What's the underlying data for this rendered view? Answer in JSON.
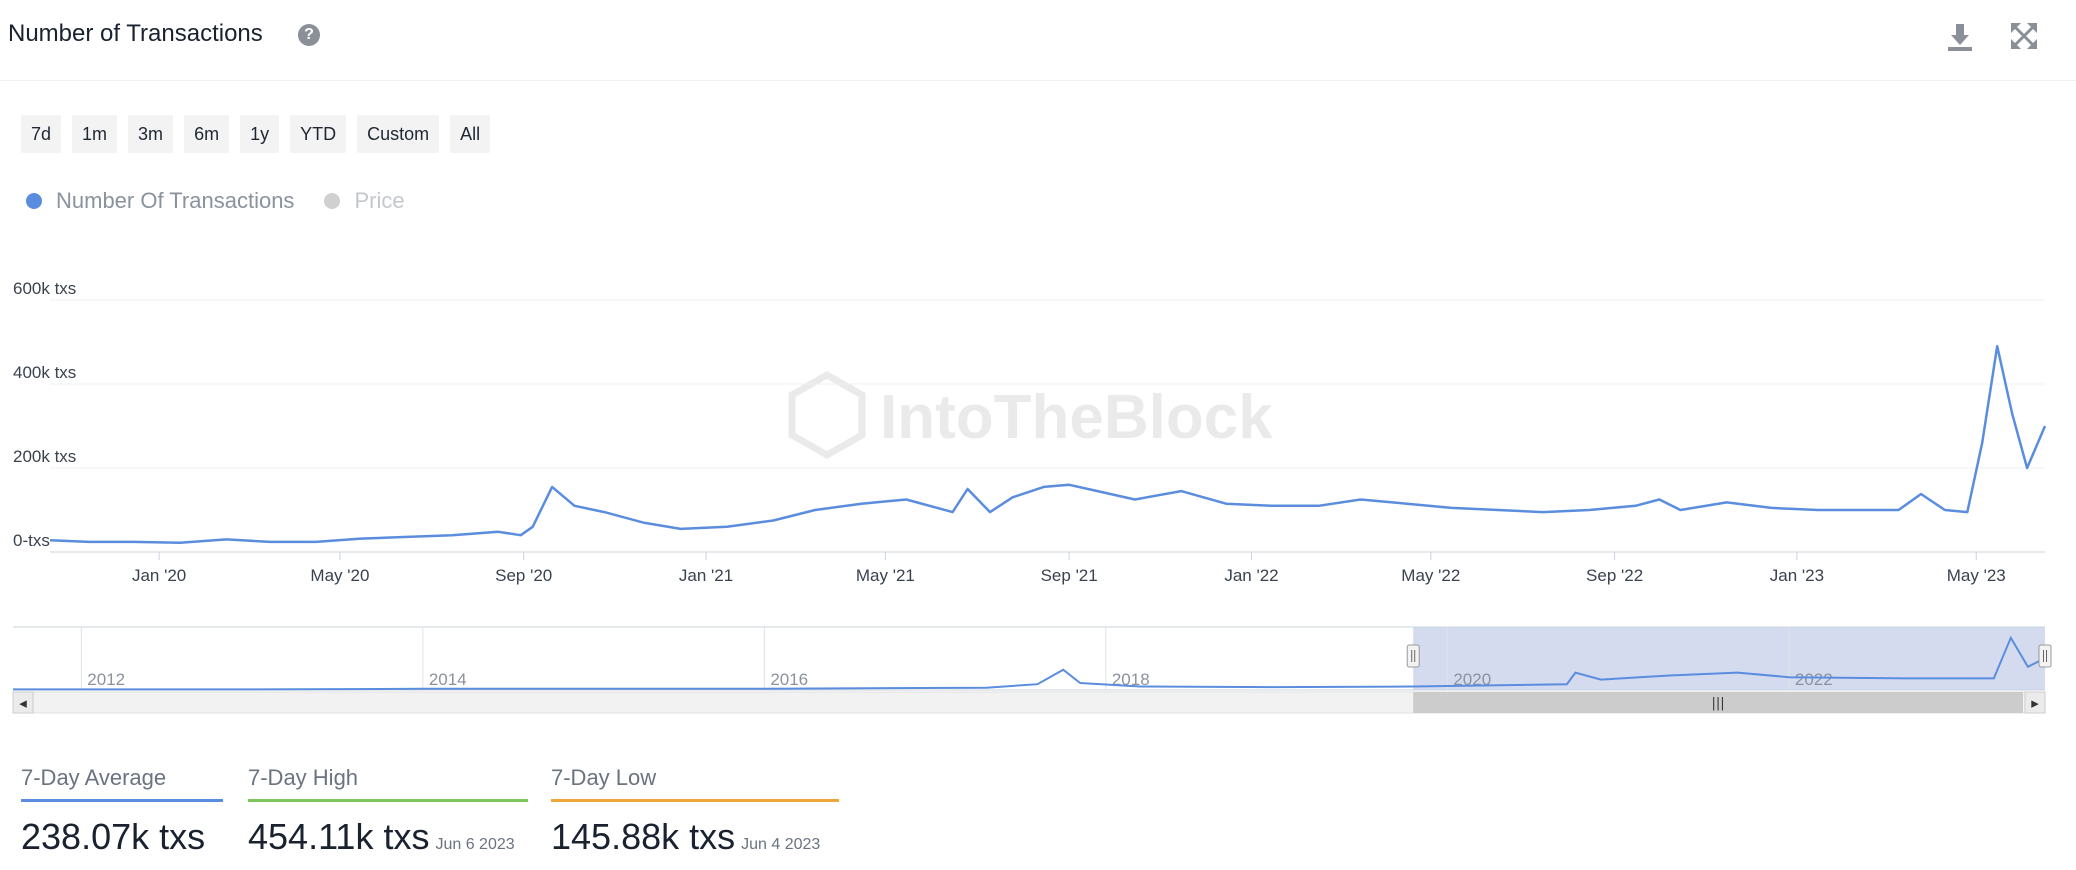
{
  "header": {
    "title": "Number of Transactions",
    "help_glyph": "?",
    "icons": [
      "help-icon",
      "download-icon",
      "expand-icon"
    ]
  },
  "range_buttons": [
    "7d",
    "1m",
    "3m",
    "6m",
    "1y",
    "YTD",
    "Custom",
    "All"
  ],
  "legend": [
    {
      "label": "Number Of Transactions",
      "color": "#5b8dde",
      "active": true
    },
    {
      "label": "Price",
      "color": "#cccccc",
      "active": false
    }
  ],
  "watermark": "IntoTheBlock",
  "chart_data": {
    "type": "line",
    "title": "Number of Transactions",
    "y_ticks": [
      "600k txs",
      "400k txs",
      "200k txs",
      "0-txs"
    ],
    "y_tick_values": [
      600,
      400,
      200,
      0
    ],
    "ylim": [
      0,
      600
    ],
    "y_unit": "k txs",
    "x_ticks": [
      "Jan '20",
      "May '20",
      "Sep '20",
      "Jan '21",
      "May '21",
      "Sep '21",
      "Jan '22",
      "May '22",
      "Sep '22",
      "Jan '23",
      "May '23"
    ],
    "x_tick_values": [
      "2020-01-01",
      "2020-05-01",
      "2020-09-01",
      "2021-01-01",
      "2021-05-01",
      "2021-09-01",
      "2022-01-01",
      "2022-05-01",
      "2022-09-01",
      "2023-01-01",
      "2023-05-01"
    ],
    "xlim": [
      "2019-10-20",
      "2023-06-16"
    ],
    "grid": true,
    "series": [
      {
        "name": "Number Of Transactions",
        "color": "#5b8dde",
        "points": [
          [
            "2019-10-20",
            28
          ],
          [
            "2019-11-15",
            24
          ],
          [
            "2019-12-15",
            24
          ],
          [
            "2020-01-15",
            22
          ],
          [
            "2020-02-15",
            30
          ],
          [
            "2020-03-15",
            24
          ],
          [
            "2020-04-15",
            24
          ],
          [
            "2020-05-15",
            32
          ],
          [
            "2020-06-15",
            36
          ],
          [
            "2020-07-15",
            40
          ],
          [
            "2020-08-15",
            48
          ],
          [
            "2020-08-30",
            40
          ],
          [
            "2020-09-07",
            60
          ],
          [
            "2020-09-20",
            155
          ],
          [
            "2020-10-05",
            110
          ],
          [
            "2020-10-25",
            95
          ],
          [
            "2020-11-20",
            70
          ],
          [
            "2020-12-15",
            55
          ],
          [
            "2021-01-15",
            60
          ],
          [
            "2021-02-15",
            75
          ],
          [
            "2021-03-15",
            100
          ],
          [
            "2021-04-15",
            115
          ],
          [
            "2021-05-15",
            125
          ],
          [
            "2021-06-15",
            95
          ],
          [
            "2021-06-25",
            150
          ],
          [
            "2021-07-10",
            95
          ],
          [
            "2021-07-25",
            130
          ],
          [
            "2021-08-15",
            155
          ],
          [
            "2021-09-01",
            160
          ],
          [
            "2021-09-20",
            145
          ],
          [
            "2021-10-15",
            125
          ],
          [
            "2021-11-15",
            145
          ],
          [
            "2021-12-15",
            115
          ],
          [
            "2022-01-15",
            110
          ],
          [
            "2022-02-15",
            110
          ],
          [
            "2022-03-15",
            125
          ],
          [
            "2022-04-15",
            115
          ],
          [
            "2022-05-15",
            105
          ],
          [
            "2022-06-15",
            100
          ],
          [
            "2022-07-15",
            95
          ],
          [
            "2022-08-15",
            100
          ],
          [
            "2022-09-15",
            110
          ],
          [
            "2022-10-01",
            125
          ],
          [
            "2022-10-15",
            100
          ],
          [
            "2022-11-15",
            118
          ],
          [
            "2022-12-15",
            105
          ],
          [
            "2023-01-15",
            100
          ],
          [
            "2023-02-15",
            100
          ],
          [
            "2023-03-10",
            100
          ],
          [
            "2023-03-25",
            138
          ],
          [
            "2023-04-10",
            100
          ],
          [
            "2023-04-25",
            95
          ],
          [
            "2023-05-05",
            260
          ],
          [
            "2023-05-15",
            490
          ],
          [
            "2023-05-25",
            330
          ],
          [
            "2023-06-04",
            200
          ],
          [
            "2023-06-16",
            300
          ]
        ]
      }
    ]
  },
  "navigator": {
    "year_labels": [
      "2012",
      "2014",
      "2016",
      "2018",
      "2020",
      "2022"
    ],
    "year_values": [
      2012,
      2014,
      2016,
      2018,
      2020,
      2022
    ],
    "xlim": [
      2011.6,
      2023.5
    ],
    "selected_range": [
      2019.8,
      2023.5
    ],
    "handle_glyph": "|||",
    "left_arrow": "◂",
    "right_arrow": "▸",
    "series": [
      [
        2011.6,
        0.01
      ],
      [
        2013,
        0.01
      ],
      [
        2014,
        0.02
      ],
      [
        2016,
        0.02
      ],
      [
        2017.3,
        0.04
      ],
      [
        2017.6,
        0.1
      ],
      [
        2017.75,
        0.35
      ],
      [
        2017.85,
        0.12
      ],
      [
        2018.2,
        0.06
      ],
      [
        2019.0,
        0.05
      ],
      [
        2019.8,
        0.06
      ],
      [
        2020.7,
        0.1
      ],
      [
        2020.75,
        0.3
      ],
      [
        2020.9,
        0.18
      ],
      [
        2021.3,
        0.25
      ],
      [
        2021.7,
        0.3
      ],
      [
        2022.0,
        0.22
      ],
      [
        2022.7,
        0.2
      ],
      [
        2023.2,
        0.2
      ],
      [
        2023.3,
        0.9
      ],
      [
        2023.4,
        0.4
      ],
      [
        2023.5,
        0.55
      ]
    ]
  },
  "stats": [
    {
      "label": "7-Day Average",
      "value": "238.07k txs",
      "date": "",
      "color": "#5b8dde"
    },
    {
      "label": "7-Day High",
      "value": "454.11k txs",
      "date": "Jun 6 2023",
      "color": "#7cc65a"
    },
    {
      "label": "7-Day Low",
      "value": "145.88k txs",
      "date": "Jun 4 2023",
      "color": "#f0a73a"
    }
  ]
}
